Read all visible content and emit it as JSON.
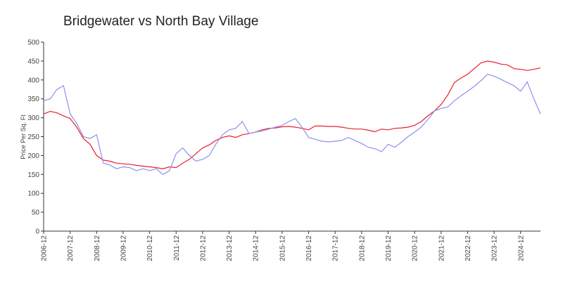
{
  "chart_data": {
    "type": "line",
    "title": "Bridgewater vs North Bay Village",
    "y_label": "Price Per Sq. Ft",
    "x": [
      "2006-12",
      "2007-03",
      "2007-06",
      "2007-09",
      "2007-12",
      "2008-03",
      "2008-06",
      "2008-09",
      "2008-12",
      "2009-03",
      "2009-06",
      "2009-09",
      "2009-12",
      "2010-03",
      "2010-06",
      "2010-09",
      "2010-12",
      "2011-03",
      "2011-06",
      "2011-09",
      "2011-12",
      "2012-03",
      "2012-06",
      "2012-09",
      "2012-12",
      "2013-03",
      "2013-06",
      "2013-09",
      "2013-12",
      "2014-03",
      "2014-06",
      "2014-09",
      "2014-12",
      "2015-03",
      "2015-06",
      "2015-09",
      "2015-12",
      "2016-03",
      "2016-06",
      "2016-09",
      "2016-12",
      "2017-03",
      "2017-06",
      "2017-09",
      "2017-12",
      "2018-03",
      "2018-06",
      "2018-09",
      "2018-12",
      "2019-03",
      "2019-06",
      "2019-09",
      "2019-12",
      "2020-03",
      "2020-06",
      "2020-09",
      "2020-12",
      "2021-03",
      "2021-06",
      "2021-09",
      "2021-12",
      "2022-03",
      "2022-06",
      "2022-09",
      "2022-12",
      "2023-03",
      "2023-06",
      "2023-09",
      "2023-12",
      "2024-03",
      "2024-06",
      "2024-09",
      "2024-12",
      "2025-03",
      "2025-06",
      "2025-09"
    ],
    "series": [
      {
        "color": "#e8202a",
        "values": [
          310,
          317,
          313,
          305,
          298,
          275,
          245,
          230,
          200,
          188,
          185,
          180,
          178,
          177,
          174,
          172,
          170,
          168,
          165,
          170,
          168,
          180,
          190,
          205,
          220,
          228,
          240,
          248,
          252,
          248,
          255,
          258,
          262,
          268,
          272,
          273,
          276,
          277,
          275,
          272,
          268,
          278,
          278,
          277,
          277,
          275,
          272,
          270,
          270,
          267,
          263,
          270,
          268,
          272,
          273,
          275,
          280,
          290,
          305,
          318,
          335,
          360,
          393,
          405,
          415,
          430,
          445,
          450,
          447,
          442,
          440,
          430,
          428,
          425,
          428,
          432
        ]
      },
      {
        "color": "#8f8ff0",
        "values": [
          345,
          350,
          375,
          385,
          310,
          285,
          250,
          245,
          255,
          180,
          175,
          165,
          170,
          168,
          160,
          165,
          160,
          165,
          150,
          160,
          205,
          220,
          200,
          185,
          190,
          200,
          230,
          255,
          268,
          272,
          290,
          258,
          262,
          265,
          270,
          275,
          280,
          290,
          298,
          275,
          248,
          243,
          238,
          236,
          238,
          240,
          248,
          240,
          232,
          222,
          218,
          210,
          230,
          222,
          235,
          250,
          262,
          275,
          295,
          318,
          325,
          328,
          345,
          358,
          370,
          383,
          398,
          415,
          410,
          402,
          393,
          385,
          370,
          395,
          350,
          310
        ]
      }
    ],
    "xlim": [
      "2006-12",
      "2025-09"
    ],
    "xticks": [
      "2006-12",
      "2007-12",
      "2008-12",
      "2009-12",
      "2010-12",
      "2011-12",
      "2012-12",
      "2013-12",
      "2014-12",
      "2015-12",
      "2016-12",
      "2017-12",
      "2018-12",
      "2019-12",
      "2020-12",
      "2021-12",
      "2022-12",
      "2023-12",
      "2024-12"
    ],
    "ylim": [
      0,
      500
    ],
    "yticks": [
      0,
      50,
      100,
      150,
      200,
      250,
      300,
      350,
      400,
      450,
      500
    ]
  }
}
